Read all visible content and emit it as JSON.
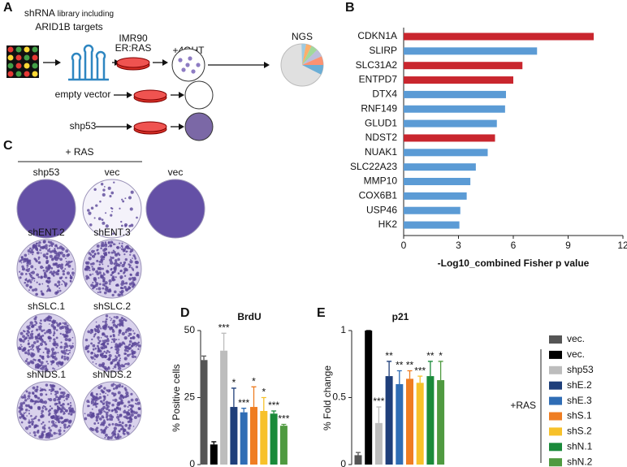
{
  "panels": {
    "a": "A",
    "b": "B",
    "c": "C",
    "d": "D",
    "e": "E"
  },
  "diagram": {
    "library_1": "shRNA",
    "library_small": "library including",
    "library_2": "ARID1B targets",
    "cells_1": "IMR90",
    "cells_2": "ER:RAS",
    "treatment": "+4OHT",
    "readout": "NGS",
    "rows": [
      "empty vector",
      "shp53"
    ]
  },
  "plates": {
    "group": "+ RAS",
    "labels": [
      "shp53",
      "vec",
      "vec",
      "shENT.2",
      "shENT.3",
      "shSLC.1",
      "shSLC.2",
      "shNDS.1",
      "shNDS.2"
    ]
  },
  "legend": {
    "group_label": "+RAS",
    "items": [
      {
        "name": "vec.",
        "color": "#555555"
      },
      {
        "name": "vec.",
        "color": "#000000"
      },
      {
        "name": "shp53",
        "color": "#bdbdbd"
      },
      {
        "name": "shE.2",
        "color": "#1f3f7a"
      },
      {
        "name": "shE.3",
        "color": "#2f6db5"
      },
      {
        "name": "shS.1",
        "color": "#ef7d22"
      },
      {
        "name": "shS.2",
        "color": "#f7c12a"
      },
      {
        "name": "shN.1",
        "color": "#1a8a3a"
      },
      {
        "name": "shN.2",
        "color": "#4f9a40"
      }
    ]
  },
  "chart_data": [
    {
      "type": "barh",
      "categories": [
        "CDKN1A",
        "SLIRP",
        "SLC31A2",
        "ENTPD7",
        "DTX4",
        "RNF149",
        "GLUD1",
        "NDST2",
        "NUAK1",
        "SLC22A23",
        "MMP10",
        "COX6B1",
        "USP46",
        "HK2"
      ],
      "values": [
        10.4,
        7.3,
        6.5,
        6.0,
        5.6,
        5.55,
        5.1,
        5.0,
        4.6,
        3.95,
        3.65,
        3.45,
        3.1,
        3.05
      ],
      "colors": [
        "#c9262e",
        "#5b9bd5",
        "#c9262e",
        "#c9262e",
        "#5b9bd5",
        "#5b9bd5",
        "#5b9bd5",
        "#c9262e",
        "#5b9bd5",
        "#5b9bd5",
        "#5b9bd5",
        "#5b9bd5",
        "#5b9bd5",
        "#5b9bd5"
      ],
      "xlim": [
        0,
        12
      ],
      "xticks": [
        0,
        3,
        6,
        9,
        12
      ],
      "xlabel": "-Log10_combined Fisher p value"
    },
    {
      "type": "errbar",
      "title": "BrdU",
      "ylabel": "% Positive cells",
      "values": [
        39,
        7.5,
        42.5,
        21.5,
        19.5,
        21.5,
        20,
        19,
        14.5
      ],
      "errors": [
        1.5,
        1,
        6.5,
        7,
        1.5,
        7.5,
        5,
        1,
        0.5
      ],
      "annotations": [
        null,
        null,
        "***",
        "*",
        "***",
        "*",
        "*",
        "***",
        "***"
      ],
      "ylim": [
        0,
        50
      ],
      "yticks": [
        0,
        25,
        50
      ]
    },
    {
      "type": "errbar",
      "title": "p21",
      "ylabel": "% Fold change",
      "values": [
        0.07,
        1.0,
        0.31,
        0.66,
        0.6,
        0.64,
        0.61,
        0.66,
        0.63
      ],
      "errors": [
        0.02,
        0,
        0.12,
        0.11,
        0.1,
        0.06,
        0.05,
        0.11,
        0.14
      ],
      "annotations": [
        null,
        null,
        "***",
        "**",
        "**",
        "**",
        "***",
        "**",
        "*"
      ],
      "ylim": [
        0,
        1
      ],
      "yticks": [
        0,
        0.5,
        1
      ]
    }
  ]
}
